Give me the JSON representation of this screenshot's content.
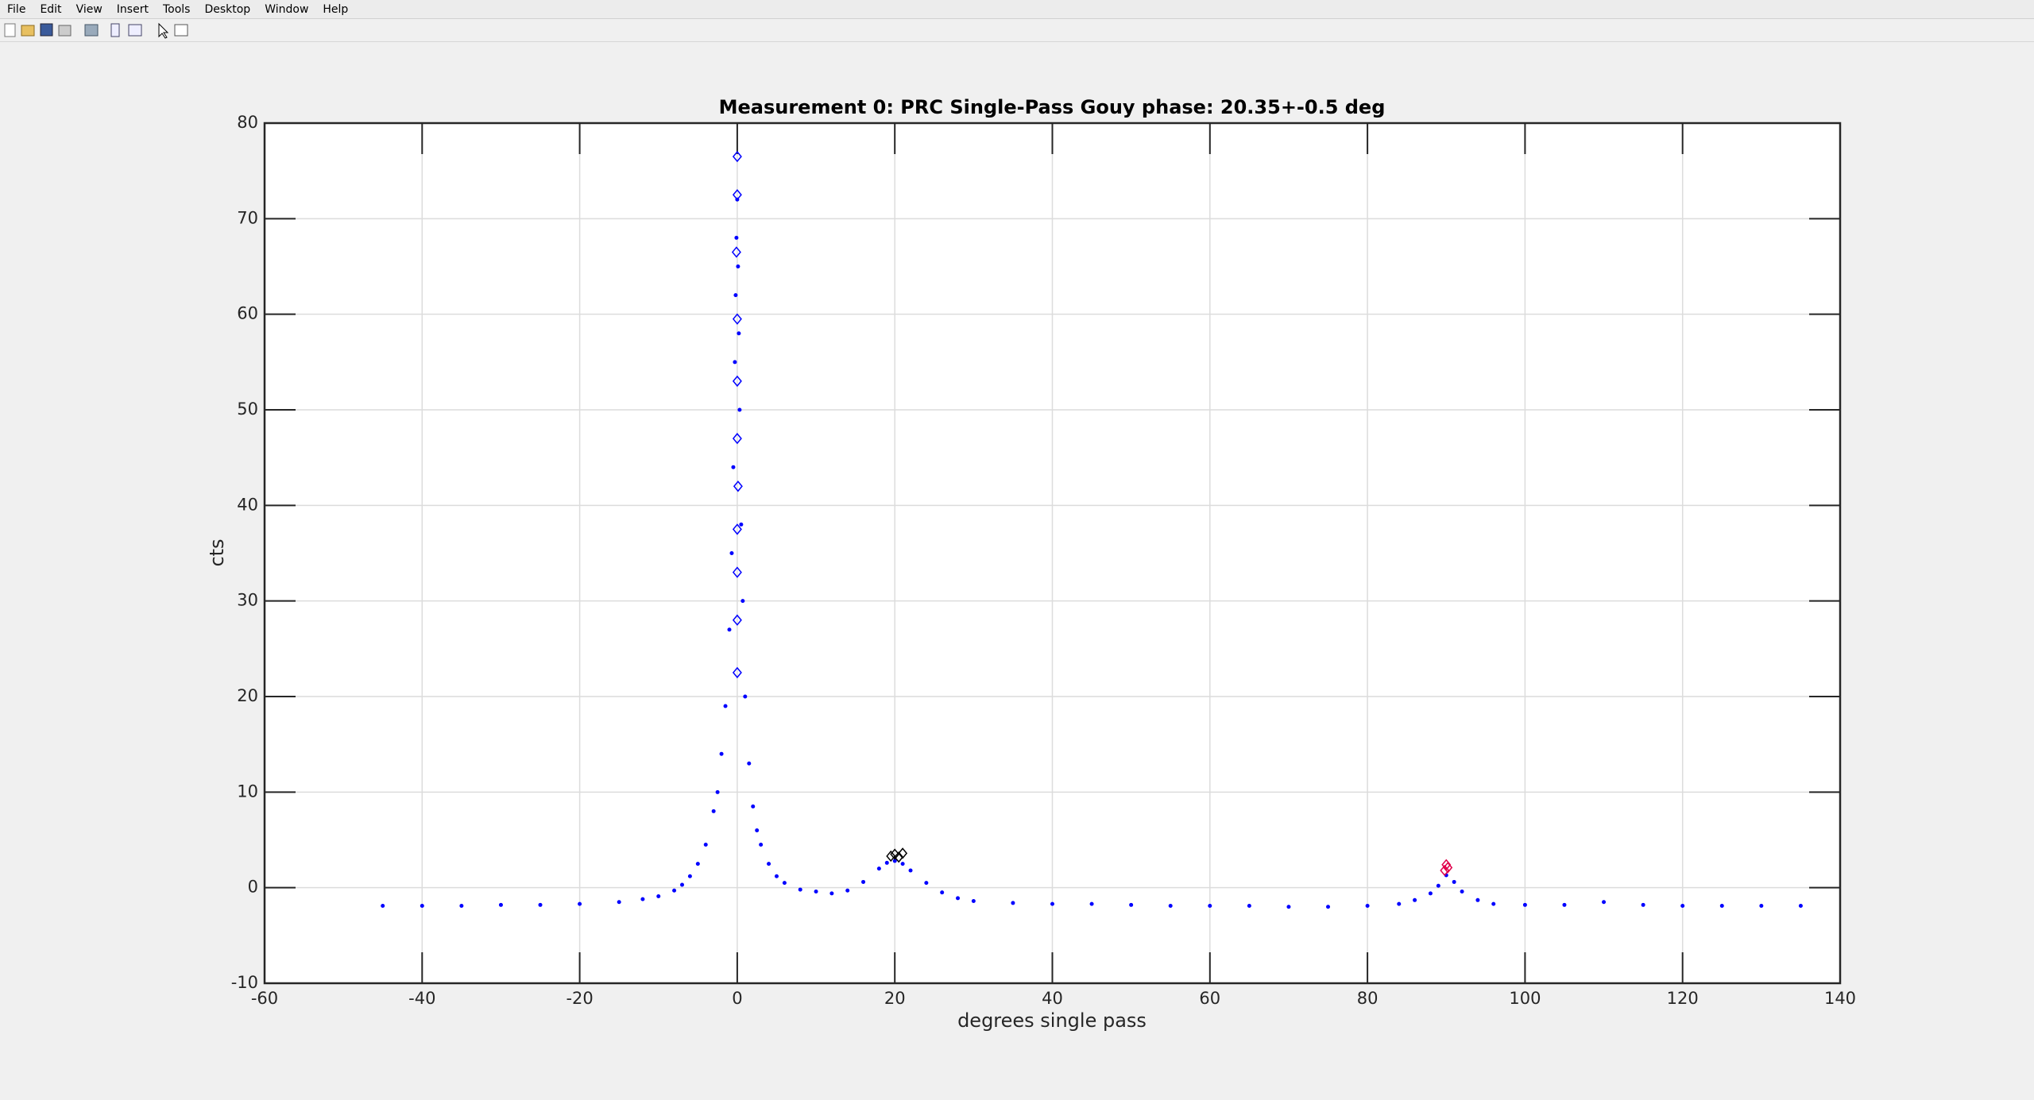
{
  "menu": [
    "File",
    "Edit",
    "View",
    "Insert",
    "Tools",
    "Desktop",
    "Window",
    "Help"
  ],
  "chart_data": {
    "type": "scatter",
    "title": "Measurement 0: PRC Single-Pass Gouy phase: 20.35+-0.5 deg",
    "xlabel": "degrees single pass",
    "ylabel": "cts",
    "xlim": [
      -60,
      140
    ],
    "xticks": [
      -60,
      -40,
      -20,
      0,
      20,
      40,
      60,
      80,
      100,
      120,
      140
    ],
    "ylim": [
      -10,
      80
    ],
    "yticks": [
      -10,
      0,
      10,
      20,
      30,
      40,
      50,
      60,
      70,
      80
    ],
    "grid": true,
    "series": [
      {
        "color": "#0000ff",
        "marker": "dot",
        "x": [
          -45,
          -40,
          -35,
          -30,
          -25,
          -20,
          -15,
          -12,
          -10,
          -8,
          -7,
          -6,
          -5,
          -4,
          -3,
          -2.5,
          -2,
          -1.5,
          -1,
          -0.7,
          -0.5,
          -0.3,
          -0.2,
          -0.1,
          0,
          0.1,
          0.2,
          0.3,
          0.5,
          0.7,
          1,
          1.5,
          2,
          2.5,
          3,
          4,
          5,
          6,
          8,
          10,
          12,
          14,
          16,
          18,
          19,
          20,
          21,
          22,
          24,
          26,
          28,
          30,
          35,
          40,
          45,
          50,
          55,
          60,
          65,
          70,
          75,
          80,
          84,
          86,
          88,
          89,
          90,
          91,
          92,
          94,
          96,
          100,
          105,
          110,
          115,
          120,
          125,
          130,
          135
        ],
        "values": [
          -1.9,
          -1.9,
          -1.9,
          -1.8,
          -1.8,
          -1.7,
          -1.5,
          -1.2,
          -0.9,
          -0.3,
          0.3,
          1.2,
          2.5,
          4.5,
          8,
          10,
          14,
          19,
          27,
          35,
          44,
          55,
          62,
          68,
          72,
          65,
          58,
          50,
          38,
          30,
          20,
          13,
          8.5,
          6,
          4.5,
          2.5,
          1.2,
          0.5,
          -0.2,
          -0.4,
          -0.6,
          -0.3,
          0.6,
          2,
          2.6,
          2.8,
          2.5,
          1.8,
          0.5,
          -0.5,
          -1.1,
          -1.4,
          -1.6,
          -1.7,
          -1.7,
          -1.8,
          -1.9,
          -1.9,
          -1.9,
          -2,
          -2,
          -1.9,
          -1.7,
          -1.3,
          -0.6,
          0.2,
          1.3,
          0.6,
          -0.4,
          -1.3,
          -1.7,
          -1.8,
          -1.8,
          -1.5,
          -1.8,
          -1.9,
          -1.9,
          -1.9,
          -1.9
        ]
      },
      {
        "color": "#0000ff",
        "marker": "diamond",
        "x": [
          0,
          0,
          -0.1,
          0,
          0,
          0,
          0.1,
          0,
          0,
          0,
          0
        ],
        "values": [
          76.5,
          72.5,
          66.5,
          59.5,
          53,
          47,
          42,
          37.5,
          33,
          28,
          22.5
        ]
      },
      {
        "color": "#000000",
        "marker": "diamond",
        "x": [
          19.5,
          20,
          20.5,
          21
        ],
        "values": [
          3.3,
          3.5,
          3.2,
          3.6
        ]
      },
      {
        "color": "#e0004a",
        "marker": "diamond",
        "x": [
          89.8,
          90,
          90.2
        ],
        "values": [
          1.8,
          2.4,
          2.1
        ]
      }
    ]
  }
}
